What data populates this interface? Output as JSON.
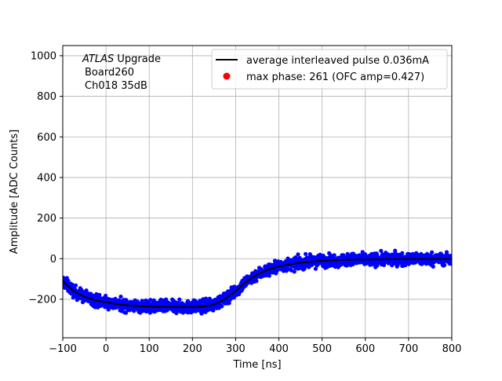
{
  "chart_data": {
    "type": "scatter",
    "title": "",
    "xlabel": "Time [ns]",
    "ylabel": "Amplitude [ADC Counts]",
    "xlim": [
      -100,
      800
    ],
    "ylim": [
      -390,
      1050
    ],
    "xticks": [
      -100,
      0,
      100,
      200,
      300,
      400,
      500,
      600,
      700,
      800
    ],
    "yticks": [
      -200,
      0,
      200,
      400,
      600,
      800,
      1000
    ],
    "grid": true,
    "legend_position": "top-right",
    "annotation": {
      "italic": "ATLAS",
      "rest": " Upgrade",
      "line2": "Board260",
      "line3": "Ch018 35dB"
    },
    "series": [
      {
        "name": "average interleaved pulse 0.036mA",
        "kind": "line",
        "color": "#000000",
        "x": [
          -100,
          -75,
          -50,
          -25,
          0,
          25,
          50,
          75,
          100,
          125,
          150,
          175,
          200,
          225,
          250,
          275,
          300,
          325,
          350,
          375,
          400,
          450,
          500,
          550,
          600,
          650,
          700,
          750,
          800
        ],
        "y": [
          -110,
          -160,
          -188,
          -205,
          -215,
          -224,
          -230,
          -234,
          -236,
          -237,
          -238,
          -238,
          -238,
          -236,
          -226,
          -200,
          -160,
          -112,
          -78,
          -55,
          -38,
          -20,
          -10,
          -6,
          -4,
          -3,
          -2,
          -2,
          -2
        ]
      },
      {
        "name": "",
        "kind": "scatter",
        "color": "#0000ff",
        "note": "dense samples around the average pulse with ~±40 ADC count spread"
      },
      {
        "name": "max phase: 261 (OFC amp=0.427)",
        "kind": "marker",
        "color": "#ff0000"
      }
    ]
  }
}
